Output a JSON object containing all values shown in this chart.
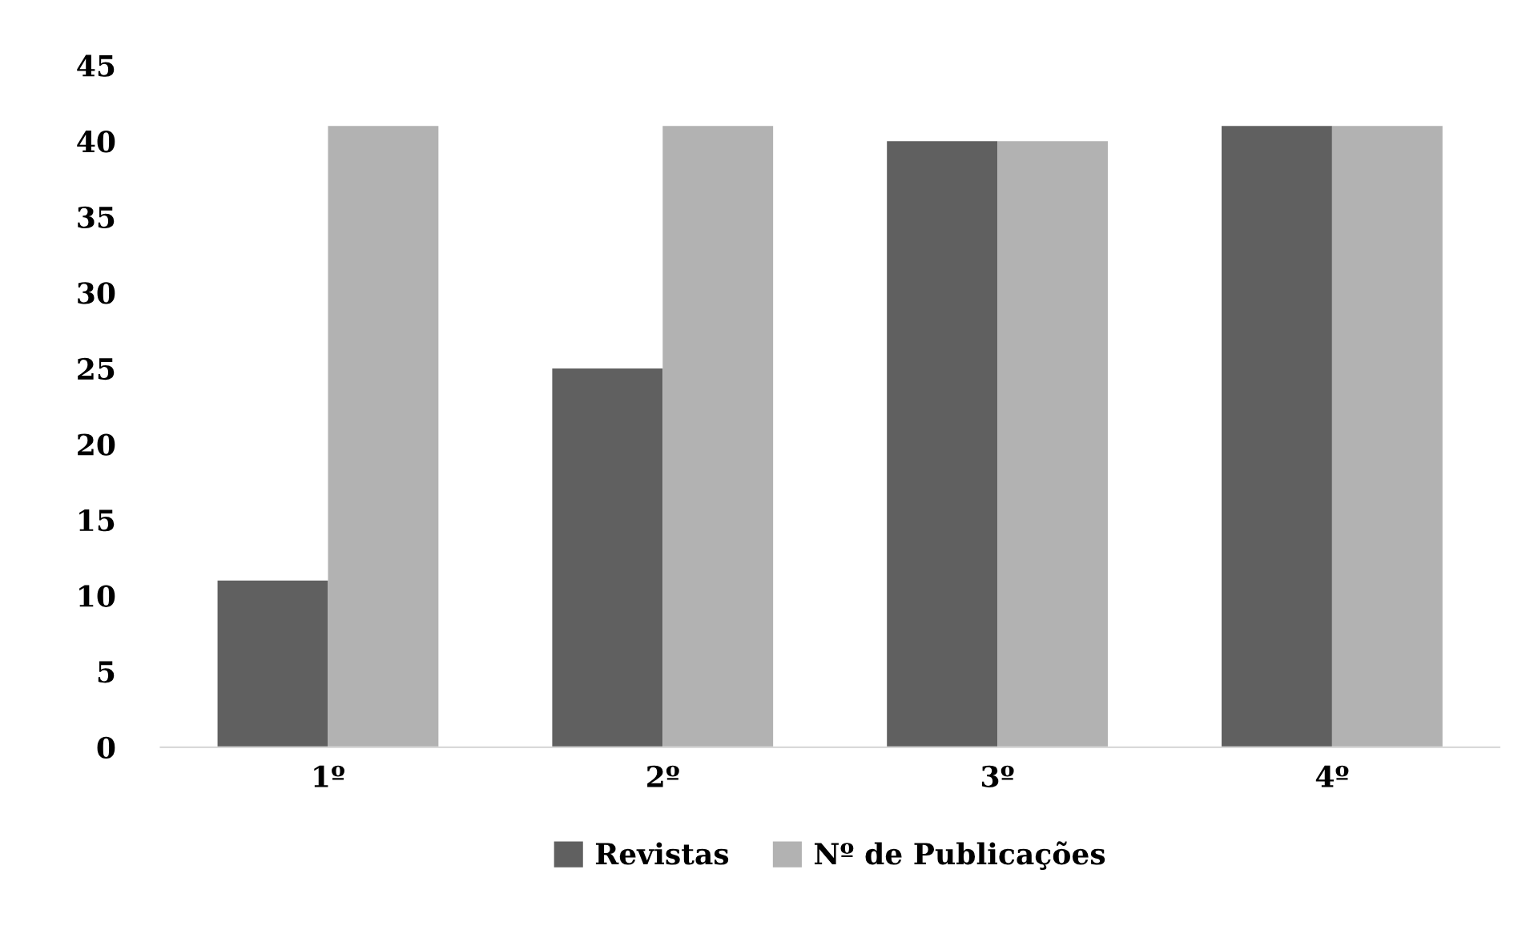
{
  "chart_data": {
    "type": "bar",
    "categories": [
      "1º",
      "2º",
      "3º",
      "4º"
    ],
    "series": [
      {
        "name": "Revistas",
        "color": "#606060",
        "values": [
          11,
          25,
          40,
          41
        ]
      },
      {
        "name": "Nº de Publicações",
        "color": "#b2b2b2",
        "values": [
          41,
          41,
          40,
          41
        ]
      }
    ],
    "ylim": [
      0,
      45
    ],
    "yticks": [
      0,
      5,
      10,
      15,
      20,
      25,
      30,
      35,
      40,
      45
    ],
    "grid": false,
    "legend": "bottom"
  }
}
